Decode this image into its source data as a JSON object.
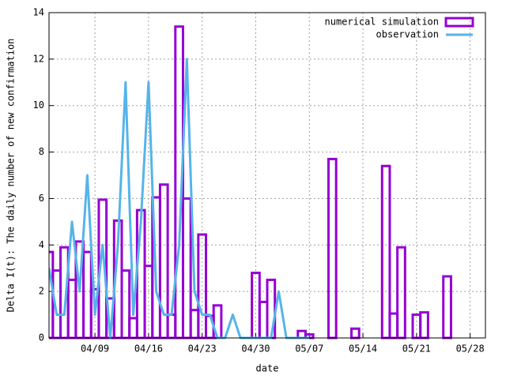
{
  "chart_data": {
    "type": "boxes-line",
    "xlabel": "date",
    "ylabel": "Delta I(t): The daily number of new confirmation",
    "x": [
      "04/03",
      "04/04",
      "04/05",
      "04/06",
      "04/07",
      "04/08",
      "04/09",
      "04/10",
      "04/11",
      "04/12",
      "04/13",
      "04/14",
      "04/15",
      "04/16",
      "04/17",
      "04/18",
      "04/19",
      "04/20",
      "04/21",
      "04/22",
      "04/23",
      "04/24",
      "04/25",
      "04/26",
      "04/27",
      "04/28",
      "04/29",
      "04/30",
      "05/01",
      "05/02",
      "05/03",
      "05/04",
      "05/05",
      "05/06",
      "05/07",
      "05/08",
      "05/09",
      "05/10",
      "05/11",
      "05/12",
      "05/13",
      "05/14",
      "05/15",
      "05/16",
      "05/17",
      "05/18",
      "05/19",
      "05/20",
      "05/21",
      "05/22",
      "05/23",
      "05/24",
      "05/25"
    ],
    "series": [
      {
        "name": "numerical simulation",
        "kind": "boxes",
        "color": "#9400d3",
        "values": [
          3.7,
          2.9,
          3.9,
          2.5,
          4.15,
          3.7,
          2.1,
          5.95,
          1.7,
          5.05,
          2.9,
          0.85,
          5.5,
          3.1,
          6.05,
          6.6,
          1.0,
          13.4,
          6.0,
          1.2,
          4.45,
          0.95,
          1.4,
          0,
          0,
          0,
          0,
          2.8,
          1.55,
          2.5,
          0,
          0,
          0,
          0.3,
          0.15,
          0,
          0,
          7.7,
          0,
          0,
          0.4,
          0,
          0,
          0,
          7.4,
          1.05,
          3.9,
          0,
          1.0,
          1.1,
          0,
          0,
          2.65
        ]
      },
      {
        "name": "observation",
        "kind": "line",
        "color": "#56b4e9",
        "values": [
          3,
          1,
          1,
          5,
          2,
          7,
          1,
          4,
          0,
          4,
          11,
          1,
          5,
          11,
          2,
          1,
          1,
          4,
          12,
          2,
          1,
          1,
          0,
          0,
          1,
          0,
          0,
          0,
          0,
          0,
          2,
          0,
          0,
          0,
          0,
          null,
          null,
          null,
          null,
          null,
          null,
          null,
          null,
          null,
          null,
          null,
          null,
          null,
          null,
          null,
          null,
          null,
          null
        ]
      }
    ],
    "xlim": [
      "04/03",
      "05/30"
    ],
    "xticks": [
      "04/09",
      "04/16",
      "04/23",
      "04/30",
      "05/07",
      "05/14",
      "05/21",
      "05/28"
    ],
    "ylim": [
      0,
      14
    ],
    "yticks": [
      0,
      2,
      4,
      6,
      8,
      10,
      12,
      14
    ],
    "grid": true,
    "legend": "top-right"
  }
}
